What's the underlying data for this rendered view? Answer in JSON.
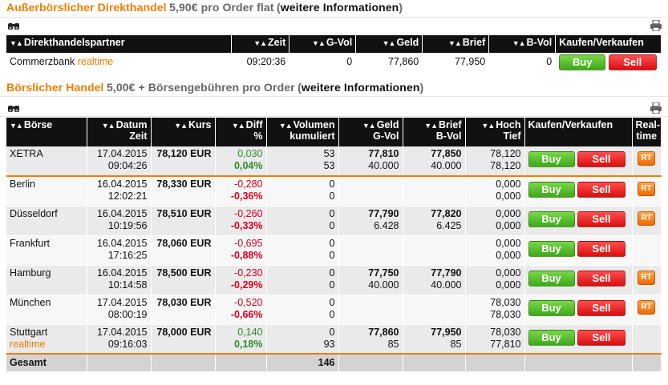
{
  "otc": {
    "title": "Außerbörslicher Direkthandel",
    "price": "5,90€ pro Order flat",
    "info_link": "weitere Informationen",
    "headers": [
      "Direkthandelspartner",
      "Zeit",
      "G-Vol",
      "Geld",
      "Brief",
      "B-Vol",
      "Kaufen/Verkaufen"
    ],
    "row": {
      "partner": "Commerzbank",
      "partner_tag": "realtime",
      "zeit": "09:20:36",
      "gvol": "0",
      "geld": "77,860",
      "brief": "77,950",
      "bvol": "0"
    }
  },
  "exchange": {
    "title": "Börslicher Handel",
    "price": "5,00€ + Börsengebühren pro Order",
    "info_link": "weitere Informationen",
    "headers": {
      "boerse": "Börse",
      "datum": "Datum",
      "zeit": "Zeit",
      "kurs": "Kurs",
      "diff": "Diff",
      "pct": "%",
      "volumen": "Volumen",
      "kumuliert": "kumuliert",
      "geld": "Geld",
      "gvol": "G-Vol",
      "brief": "Brief",
      "bvol": "B-Vol",
      "hoch": "Hoch",
      "tief": "Tief",
      "kaufen": "Kaufen/Verkaufen",
      "realtime1": "Real-",
      "realtime2": "time"
    },
    "rows": [
      {
        "name": "XETRA",
        "tag": "",
        "datum": "17.04.2015",
        "zeit": "09:04:26",
        "kurs": "78,120 EUR",
        "diff": "0,030",
        "pct": "0,04%",
        "dir": "up",
        "vol": "53",
        "kum": "53",
        "geld": "77,810",
        "gvol": "40.000",
        "brief": "77,850",
        "bvol": "40.000",
        "hoch": "78,120",
        "tief": "78,120",
        "rt": true
      },
      {
        "name": "Berlin",
        "tag": "",
        "datum": "16.04.2015",
        "zeit": "12:02:21",
        "kurs": "78,330 EUR",
        "diff": "-0,280",
        "pct": "-0,36%",
        "dir": "down",
        "vol": "0",
        "kum": "0",
        "geld": "",
        "gvol": "",
        "brief": "",
        "bvol": "",
        "hoch": "0,000",
        "tief": "0,000",
        "rt": true
      },
      {
        "name": "Düsseldorf",
        "tag": "",
        "datum": "16.04.2015",
        "zeit": "10:19:56",
        "kurs": "78,510 EUR",
        "diff": "-0,260",
        "pct": "-0,33%",
        "dir": "down",
        "vol": "0",
        "kum": "0",
        "geld": "77,790",
        "gvol": "6.428",
        "brief": "77,820",
        "bvol": "6.425",
        "hoch": "0,000",
        "tief": "0,000",
        "rt": true
      },
      {
        "name": "Frankfurt",
        "tag": "",
        "datum": "16.04.2015",
        "zeit": "17:16:25",
        "kurs": "78,060 EUR",
        "diff": "-0,695",
        "pct": "-0,88%",
        "dir": "down",
        "vol": "0",
        "kum": "0",
        "geld": "",
        "gvol": "",
        "brief": "",
        "bvol": "",
        "hoch": "0,000",
        "tief": "0,000",
        "rt": false
      },
      {
        "name": "Hamburg",
        "tag": "",
        "datum": "16.04.2015",
        "zeit": "10:14:58",
        "kurs": "78,500 EUR",
        "diff": "-0,230",
        "pct": "-0,29%",
        "dir": "down",
        "vol": "0",
        "kum": "0",
        "geld": "77,750",
        "gvol": "40.000",
        "brief": "77,790",
        "bvol": "40.000",
        "hoch": "0,000",
        "tief": "0,000",
        "rt": true
      },
      {
        "name": "München",
        "tag": "",
        "datum": "17.04.2015",
        "zeit": "08:00:19",
        "kurs": "78,030 EUR",
        "diff": "-0,520",
        "pct": "-0,66%",
        "dir": "down",
        "vol": "0",
        "kum": "0",
        "geld": "",
        "gvol": "",
        "brief": "",
        "bvol": "",
        "hoch": "78,030",
        "tief": "78,030",
        "rt": true
      },
      {
        "name": "Stuttgart",
        "tag": "realtime",
        "datum": "17.04.2015",
        "zeit": "09:16:03",
        "kurs": "78,000 EUR",
        "diff": "0,140",
        "pct": "0,18%",
        "dir": "up",
        "vol": "0",
        "kum": "93",
        "geld": "77,860",
        "gvol": "85",
        "brief": "77,950",
        "bvol": "85",
        "hoch": "78,030",
        "tief": "77,810",
        "rt": false
      }
    ],
    "total_label": "Gesamt",
    "total_value": "146"
  },
  "buttons": {
    "buy": "Buy",
    "sell": "Sell",
    "rt": "RT"
  },
  "colors": {
    "accent": "#f07d00",
    "buy": "#4cb82a",
    "sell": "#e01818",
    "positive": "#2e8b2e",
    "negative": "#d9001b"
  }
}
